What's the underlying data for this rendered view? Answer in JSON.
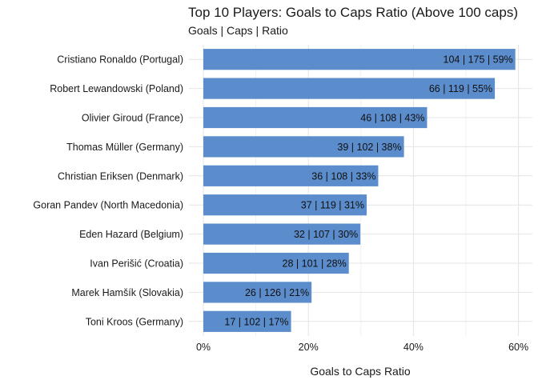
{
  "chart_data": {
    "type": "bar",
    "orientation": "horizontal",
    "title": "Top 10 Players: Goals to Caps Ratio (Above 100 caps)",
    "subtitle": "Goals | Caps | Ratio",
    "xlabel": "Goals to Caps Ratio",
    "ylabel": "",
    "xlim": [
      0,
      0.62
    ],
    "x_ticks": [
      0,
      0.2,
      0.4,
      0.6
    ],
    "x_tick_labels": [
      "0%",
      "20%",
      "40%",
      "60%"
    ],
    "grid": true,
    "bar_color": "#5b8ccb",
    "categories": [
      "Cristiano Ronaldo  (Portugal)",
      "Robert Lewandowski  (Poland)",
      "Olivier Giroud (France)",
      "Thomas Müller (Germany)",
      "Christian Eriksen (Denmark)",
      "Goran Pandev  (North Macedonia)",
      "Eden Hazard  (Belgium)",
      "Ivan Perišić (Croatia)",
      "Marek Hamšík  (Slovakia)",
      "Toni Kroos (Germany)"
    ],
    "values": [
      0.594,
      0.555,
      0.426,
      0.382,
      0.333,
      0.311,
      0.299,
      0.277,
      0.206,
      0.167
    ],
    "data_labels": [
      "104 | 175 | 59%",
      "66 | 119 | 55%",
      "46 | 108 | 43%",
      "39 | 102 | 38%",
      "36 | 108 | 33%",
      "37 | 119 | 31%",
      "32 | 107 | 30%",
      "28 | 101 | 28%",
      "26 | 126 | 21%",
      "17 | 102 | 17%"
    ]
  }
}
